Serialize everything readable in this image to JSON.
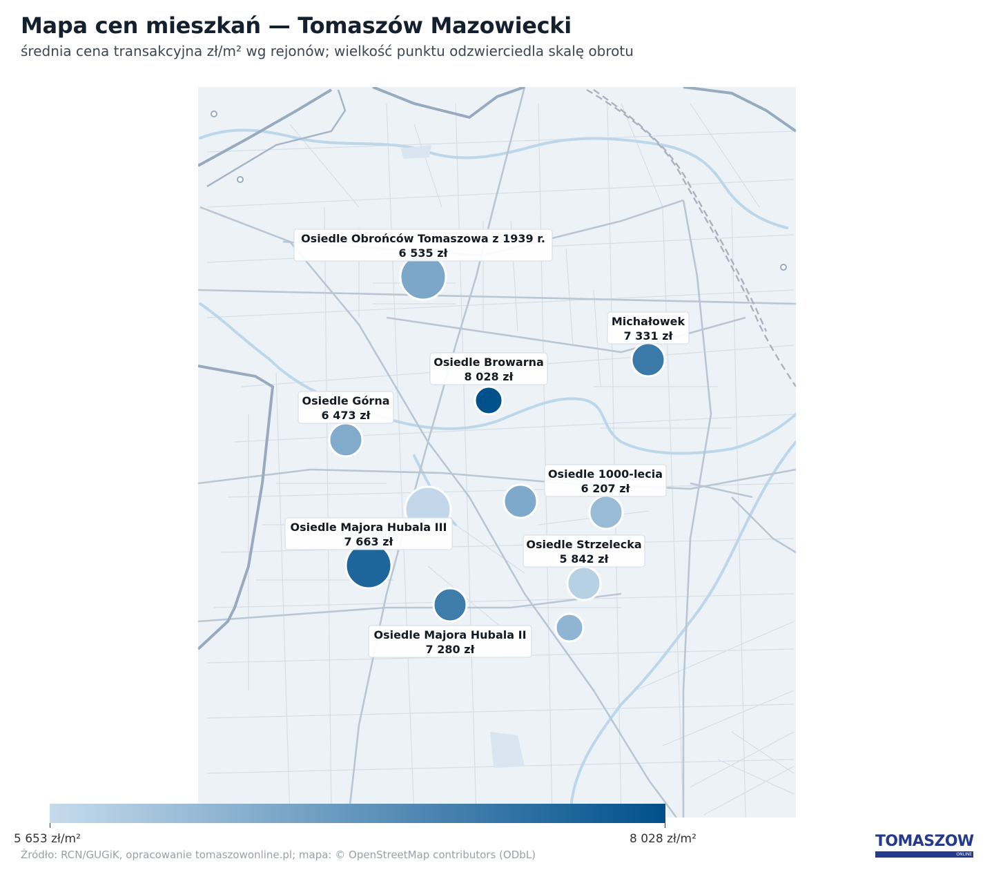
{
  "title": "Mapa cen mieszkań — Tomaszów Mazowiecki",
  "subtitle": "średnia cena transakcyjna zł/m² wg rejonów; wielkość punktu odzwierciedla skalę obrotu",
  "colors": {
    "scale_low": "#c6dbec",
    "scale_high": "#00508c",
    "map_bg": "#edf2f7",
    "road": "#c8d2dd",
    "major_road": "#9aabbf",
    "river": "#bcd6ea"
  },
  "price_scale": {
    "min": 5653,
    "max": 8028
  },
  "legend": {
    "min_label": "5 653 zł/m²",
    "max_label": "8 028 zł/m²"
  },
  "districts": [
    {
      "name": "Osiedle Obrońców Tomaszowa z 1939 r.",
      "price": 6535,
      "price_label": "6 535 zł",
      "size": "large",
      "labeled": true
    },
    {
      "name": "Michałowek",
      "price": 7331,
      "price_label": "7 331 zł",
      "size": "medium",
      "labeled": true
    },
    {
      "name": "Osiedle Browarna",
      "price": 8028,
      "price_label": "8 028 zł",
      "size": "small",
      "labeled": true
    },
    {
      "name": "Osiedle Górna",
      "price": 6473,
      "price_label": "6 473 zł",
      "size": "medium",
      "labeled": true
    },
    {
      "name": "Osiedle 1000-lecia",
      "price": 6207,
      "price_label": "6 207 zł",
      "size": "medium",
      "labeled": true
    },
    {
      "name": "Osiedle Majora Hubala III",
      "price": 7663,
      "price_label": "7 663 zł",
      "size": "large",
      "labeled": true
    },
    {
      "name": "Osiedle Strzelecka",
      "price": 5842,
      "price_label": "5 842 zł",
      "size": "medium",
      "labeled": true
    },
    {
      "name": "Osiedle Majora Hubala II",
      "price": 7280,
      "price_label": "7 280 zł",
      "size": "medium",
      "labeled": true
    },
    {
      "name": "",
      "price": 5700,
      "size": "large",
      "labeled": false
    },
    {
      "name": "",
      "price": 6500,
      "size": "medium",
      "labeled": false
    },
    {
      "name": "",
      "price": 6300,
      "size": "small",
      "labeled": false
    }
  ],
  "source": "Źródło: RCN/GUGiK, opracowanie tomaszowonline.pl; mapa: © OpenStreetMap contributors (ODbL)",
  "logo": {
    "text": "TOMASZOW",
    "sub": "ONLINE"
  }
}
